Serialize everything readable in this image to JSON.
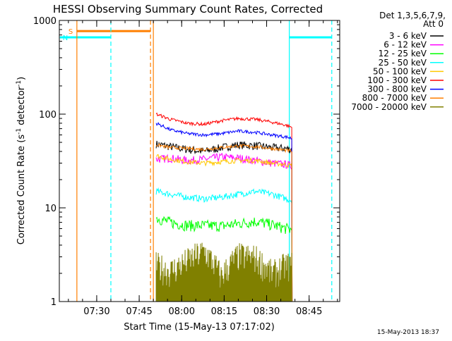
{
  "chart_data": {
    "type": "line",
    "title": "HESSI Observing Summary Count Rates, Corrected",
    "xlabel": "Start Time (15-May-13 07:17:02)",
    "ylabel_main": "Corrected Count Rate (s",
    "ylabel_sup1": "-1",
    "ylabel_mid": " detector",
    "ylabel_sup2": "-1",
    "ylabel_end": ")",
    "yscale": "log",
    "ylim": [
      1,
      1000
    ],
    "xlim_minutes": [
      7.28,
      8.93
    ],
    "x_ticks": [
      "07:30",
      "07:45",
      "08:00",
      "08:15",
      "08:30",
      "08:45"
    ],
    "y_ticks": [
      "1",
      "10",
      "100",
      "1000"
    ],
    "legend_header_1": "Det 1,3,5,6,7,9,",
    "legend_header_2": "Att 0",
    "legend_position": "right",
    "timestamp": "15-May-2013 18:37",
    "data_window": [
      "07:50",
      "08:39"
    ],
    "series": [
      {
        "name": "3 - 6 keV",
        "color": "#000000",
        "times": [
          "07:51",
          "07:56",
          "08:02",
          "08:08",
          "08:14",
          "08:20",
          "08:26",
          "08:32",
          "08:37",
          "08:39"
        ],
        "values": [
          48,
          45,
          42,
          40,
          44,
          47,
          46,
          44,
          43,
          42
        ]
      },
      {
        "name": "6 - 12 keV",
        "color": "#ff00ff",
        "times": [
          "07:51",
          "07:56",
          "08:02",
          "08:08",
          "08:14",
          "08:20",
          "08:26",
          "08:32",
          "08:37",
          "08:39"
        ],
        "values": [
          33,
          34,
          32,
          33,
          35,
          34,
          32,
          30,
          29,
          28
        ]
      },
      {
        "name": "12 - 25 keV",
        "color": "#00ff00",
        "times": [
          "07:51",
          "07:56",
          "08:02",
          "08:08",
          "08:14",
          "08:20",
          "08:26",
          "08:32",
          "08:37",
          "08:39"
        ],
        "values": [
          7.8,
          7.0,
          6.5,
          6.5,
          6.4,
          6.8,
          7.2,
          6.6,
          6.0,
          5.8
        ]
      },
      {
        "name": "25 - 50 keV",
        "color": "#00ffff",
        "times": [
          "07:51",
          "07:56",
          "08:02",
          "08:08",
          "08:14",
          "08:20",
          "08:26",
          "08:32",
          "08:37",
          "08:39"
        ],
        "values": [
          15,
          14,
          13,
          12.5,
          13,
          14,
          15,
          14,
          12.5,
          12
        ]
      },
      {
        "name": "50 - 100 keV",
        "color": "#ffc800",
        "times": [
          "07:51",
          "07:56",
          "08:02",
          "08:08",
          "08:14",
          "08:20",
          "08:26",
          "08:32",
          "08:37",
          "08:39"
        ],
        "values": [
          36,
          33,
          31,
          30,
          31,
          32,
          32,
          30,
          29,
          28
        ]
      },
      {
        "name": "100 - 300 keV",
        "color": "#ff0000",
        "times": [
          "07:51",
          "07:56",
          "08:02",
          "08:08",
          "08:14",
          "08:20",
          "08:26",
          "08:32",
          "08:37",
          "08:39"
        ],
        "values": [
          100,
          88,
          80,
          78,
          85,
          90,
          88,
          82,
          76,
          72
        ]
      },
      {
        "name": "300 - 800 keV",
        "color": "#0000ff",
        "times": [
          "07:51",
          "07:56",
          "08:02",
          "08:08",
          "08:14",
          "08:20",
          "08:26",
          "08:32",
          "08:37",
          "08:39"
        ],
        "values": [
          80,
          68,
          62,
          60,
          62,
          66,
          64,
          60,
          57,
          55
        ]
      },
      {
        "name": "800 - 7000 keV",
        "color": "#ff7f00",
        "times": [
          "07:51",
          "07:56",
          "08:02",
          "08:08",
          "08:14",
          "08:20",
          "08:26",
          "08:32",
          "08:37",
          "08:39"
        ],
        "values": [
          47,
          44,
          43,
          42,
          44,
          46,
          45,
          43,
          41,
          40
        ]
      },
      {
        "name": "7000 - 20000 keV",
        "color": "#808000",
        "times": [
          "07:51",
          "07:56",
          "08:02",
          "08:08",
          "08:14",
          "08:20",
          "08:26",
          "08:32",
          "08:37",
          "08:39"
        ],
        "values": [
          2,
          1.7,
          2.2,
          2.8,
          1.5,
          2.5,
          2.4,
          1.6,
          2.0,
          2.0
        ]
      }
    ],
    "flags": [
      {
        "label": "S",
        "color": "#ff7f00",
        "start": "07:23",
        "end": "07:49",
        "level": 770
      },
      {
        "label": "N",
        "color": "#00ffff",
        "start": "07:17",
        "end": "07:35",
        "level": 660
      },
      {
        "label": "",
        "color": "#00ffff",
        "start": "08:38",
        "end": "08:53",
        "level": 660
      }
    ],
    "vlines": [
      {
        "time": "07:23",
        "color": "#ff7f00",
        "style": "solid"
      },
      {
        "time": "07:35",
        "color": "#00ffff",
        "style": "dashed"
      },
      {
        "time": "07:49",
        "color": "#ff7f00",
        "style": "dashed"
      },
      {
        "time": "07:50",
        "color": "#ff7f00",
        "style": "solid"
      },
      {
        "time": "08:38",
        "color": "#00ffff",
        "style": "solid"
      },
      {
        "time": "08:53",
        "color": "#00ffff",
        "style": "dashed"
      }
    ]
  }
}
